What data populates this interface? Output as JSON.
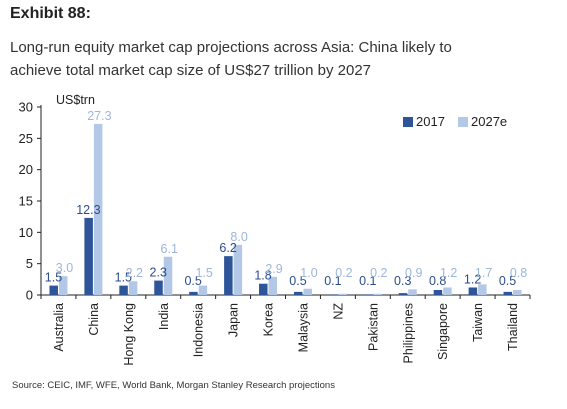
{
  "exhibit_label": "Exhibit 88:",
  "title_line1": "Long-run equity market cap projections across Asia: China likely to",
  "title_line2": "achieve total market cap size of US$27 trillion by 2027",
  "source": "Source: CEIC, IMF, WFE, World Bank, Morgan Stanley Research projections",
  "colors": {
    "series_2017": "#2d5597",
    "series_2027e": "#b3c7e6"
  },
  "chart_data": {
    "type": "bar",
    "title": "",
    "unit_label": "US$trn",
    "xlabel": "",
    "ylabel": "US$trn",
    "ylim": [
      0,
      30
    ],
    "yticks": [
      0,
      5,
      10,
      15,
      20,
      25,
      30
    ],
    "grid": false,
    "legend_position": "top-right",
    "categories": [
      "Australia",
      "China",
      "Hong Kong",
      "India",
      "Indonesia",
      "Japan",
      "Korea",
      "Malaysia",
      "NZ",
      "Pakistan",
      "Philippines",
      "Singapore",
      "Taiwan",
      "Thailand"
    ],
    "series": [
      {
        "name": "2017",
        "values": [
          1.5,
          12.3,
          1.5,
          2.3,
          0.5,
          6.2,
          1.8,
          0.5,
          0.1,
          0.1,
          0.3,
          0.8,
          1.2,
          0.5
        ]
      },
      {
        "name": "2027e",
        "values": [
          3.0,
          27.3,
          2.2,
          6.1,
          1.5,
          8.0,
          2.9,
          1.0,
          0.2,
          0.2,
          0.9,
          1.2,
          1.7,
          0.8
        ]
      }
    ],
    "data_labels": [
      [
        "1.5",
        "12.3",
        "1.5",
        "2.3",
        "0.5",
        "6.2",
        "1.8",
        "0.5",
        "0.1",
        "0.1",
        "0.3",
        "0.8",
        "1.2",
        "0.5"
      ],
      [
        "3.0",
        "27.3",
        "2.2",
        "6.1",
        "1.5",
        "8.0",
        "2.9",
        "1.0",
        "0.2",
        "0.2",
        "0.9",
        "1.2",
        "1.7",
        "0.8"
      ]
    ]
  }
}
